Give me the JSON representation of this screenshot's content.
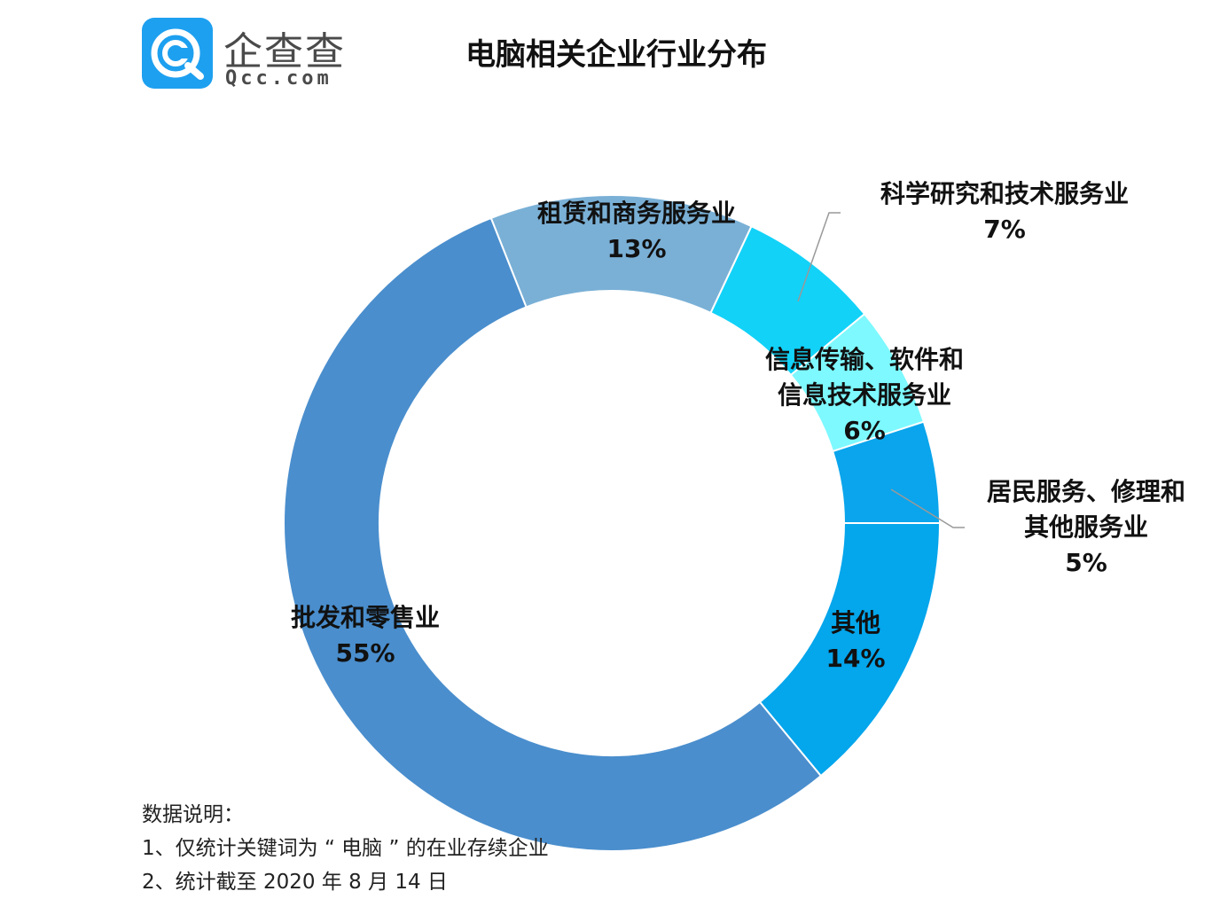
{
  "logo": {
    "name_cn": "企查查",
    "name_en": "Qcc.com",
    "brand_color": "#1ea0f0",
    "icon": "qcc-logo-icon"
  },
  "title": "电脑相关企业行业分布",
  "chart_data": {
    "type": "pie",
    "variant": "donut",
    "title": "电脑相关企业行业分布",
    "series": [
      {
        "name": "租赁和商务服务业",
        "value": 13,
        "label": "13%",
        "color": "#7ab0d6"
      },
      {
        "name": "科学研究和技术服务业",
        "value": 7,
        "label": "7%",
        "color": "#12d2f8"
      },
      {
        "name": "信息传输、软件和信息技术服务业",
        "value": 6,
        "label": "6%",
        "color": "#7df9ff"
      },
      {
        "name": "居民服务、修理和其他服务业",
        "value": 5,
        "label": "5%",
        "color": "#0aa5ec"
      },
      {
        "name": "其他",
        "value": 14,
        "label": "14%",
        "color": "#04a6ec"
      },
      {
        "name": "批发和零售业",
        "value": 55,
        "label": "55%",
        "color": "#4a8ecd"
      }
    ],
    "label_lines": {
      "租赁和商务服务业": [
        "租赁和商务服务业"
      ],
      "科学研究和技术服务业": [
        "科学研究和技术服务业"
      ],
      "信息传输、软件和信息技术服务业": [
        "信息传输、软件和",
        "信息技术服务业"
      ],
      "居民服务、修理和其他服务业": [
        "居民服务、修理和",
        "其他服务业"
      ],
      "其他": [
        "其他"
      ],
      "批发和零售业": [
        "批发和零售业"
      ]
    }
  },
  "notes": {
    "heading": "数据说明：",
    "line1": "1、仅统计关键词为 “ 电脑 ” 的在业存续企业",
    "line2": "2、统计截至 2020 年 8 月 14 日"
  }
}
